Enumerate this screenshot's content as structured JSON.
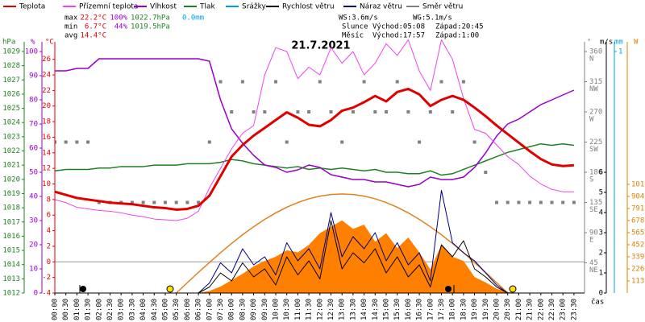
{
  "chart_data": {
    "type": "line",
    "title": "21.7.2021",
    "x_label": "čas",
    "categories": [
      "00:00",
      "00:30",
      "01:00",
      "01:30",
      "02:00",
      "02:30",
      "03:00",
      "03:30",
      "04:00",
      "04:30",
      "05:00",
      "05:30",
      "06:00",
      "06:30",
      "07:00",
      "07:30",
      "08:00",
      "08:30",
      "09:00",
      "09:30",
      "10:00",
      "10:30",
      "11:00",
      "11:30",
      "12:00",
      "12:30",
      "13:00",
      "13:30",
      "14:00",
      "14:30",
      "15:00",
      "15:30",
      "16:00",
      "16:30",
      "17:00",
      "17:30",
      "18:00",
      "18:30",
      "19:00",
      "19:30",
      "20:00",
      "20:30",
      "21:00",
      "21:30",
      "22:00",
      "22:30",
      "23:00",
      "23:30"
    ],
    "axes": {
      "hPa": {
        "label": "hPa",
        "color": "#208020",
        "ylim": [
          1012,
          1029
        ],
        "yticks": [
          1012,
          1013,
          1014,
          1015,
          1016,
          1017,
          1018,
          1019,
          1020,
          1021,
          1022,
          1023,
          1024,
          1025,
          1026,
          1027,
          1028,
          1029
        ]
      },
      "pct": {
        "label": "%",
        "color": "#9900cc",
        "ylim": [
          0,
          100
        ],
        "yticks": [
          0,
          10,
          20,
          30,
          40,
          50,
          60,
          70,
          80,
          90,
          100
        ]
      },
      "degC": {
        "label": "°C",
        "color": "#e00000",
        "ylim": [
          -4,
          27
        ],
        "yticks": [
          -4,
          -2,
          0,
          2,
          4,
          6,
          8,
          10,
          12,
          14,
          16,
          18,
          20,
          22,
          24,
          26
        ],
        "zero_line": true
      },
      "dir": {
        "label": "°",
        "color": "#808080",
        "ylim": [
          0,
          360
        ],
        "yticks": [
          45,
          90,
          135,
          180,
          225,
          270,
          315,
          360
        ],
        "compass": [
          "NE",
          "E",
          "SE",
          "S",
          "SW",
          "W",
          "NW",
          "N"
        ]
      },
      "ms": {
        "label": "m/s",
        "color": "#000000",
        "ylim": [
          0,
          12
        ],
        "yticks": [
          0,
          1,
          2,
          3,
          4,
          5,
          6
        ]
      },
      "mm": {
        "label": "mm",
        "color": "#00a0e0",
        "ylim": [
          0,
          1
        ],
        "yticks": [
          1
        ]
      },
      "W": {
        "label": "W",
        "color": "#e08000",
        "ylim": [
          0,
          2260
        ],
        "yticks": [
          113,
          226,
          339,
          452,
          565,
          678,
          791,
          904,
          1017
        ]
      }
    },
    "series": [
      {
        "name": "Teplota",
        "color": "#e00000",
        "axis": "degC",
        "width": 3,
        "values": [
          9.0,
          8.6,
          8.2,
          8.0,
          7.8,
          7.6,
          7.5,
          7.4,
          7.2,
          7.0,
          6.9,
          6.7,
          6.8,
          7.2,
          8.5,
          11.0,
          13.5,
          15.0,
          16.2,
          17.2,
          18.2,
          19.2,
          18.5,
          17.6,
          17.4,
          18.2,
          19.4,
          19.8,
          20.5,
          21.3,
          20.6,
          21.8,
          22.2,
          21.5,
          20.0,
          20.8,
          21.3,
          20.8,
          19.8,
          18.7,
          17.5,
          16.4,
          15.3,
          14.2,
          13.2,
          12.5,
          12.3,
          12.4
        ]
      },
      {
        "name": "Přízemní teplota",
        "color": "#ee44ee",
        "axis": "degC",
        "width": 1,
        "values": [
          8.0,
          7.6,
          7.0,
          6.8,
          6.6,
          6.5,
          6.3,
          6.0,
          5.8,
          5.5,
          5.4,
          5.3,
          5.6,
          6.5,
          9.5,
          12.0,
          14.5,
          16.5,
          17.5,
          24.0,
          27.5,
          27.0,
          23.5,
          25.0,
          24.0,
          27.5,
          25.5,
          27.0,
          24.0,
          25.5,
          28.0,
          26.5,
          28.5,
          24.5,
          22.0,
          28.5,
          26.0,
          21.0,
          17.0,
          16.5,
          15.0,
          13.5,
          12.5,
          11.0,
          10.0,
          9.3,
          9.0,
          9.0
        ]
      },
      {
        "name": "Vlhkost",
        "color": "#9900cc",
        "axis": "pct",
        "width": 1.5,
        "values": [
          92,
          92,
          93,
          93,
          97,
          97,
          97,
          97,
          97,
          97,
          97,
          97,
          97,
          97,
          96,
          80,
          68,
          62,
          57,
          53,
          52,
          50,
          51,
          53,
          52,
          49,
          48,
          47,
          47,
          46,
          46,
          45,
          44,
          45,
          48,
          47,
          47,
          48,
          52,
          58,
          65,
          70,
          72,
          75,
          78,
          80,
          82,
          84
        ]
      },
      {
        "name": "Tlak",
        "color": "#208020",
        "axis": "hPa",
        "width": 1.5,
        "values": [
          1020.6,
          1020.7,
          1020.7,
          1020.7,
          1020.8,
          1020.8,
          1020.9,
          1020.9,
          1020.9,
          1021.0,
          1021.0,
          1021.0,
          1021.1,
          1021.1,
          1021.1,
          1021.2,
          1021.4,
          1021.3,
          1021.1,
          1021.0,
          1020.9,
          1020.8,
          1020.9,
          1020.7,
          1020.8,
          1020.7,
          1020.8,
          1020.7,
          1020.6,
          1020.7,
          1020.5,
          1020.5,
          1020.4,
          1020.4,
          1020.6,
          1020.3,
          1020.4,
          1020.7,
          1021.0,
          1021.3,
          1021.6,
          1021.9,
          1022.1,
          1022.3,
          1022.5,
          1022.4,
          1022.5,
          1022.4
        ]
      },
      {
        "name": "Srážky",
        "color": "#00a0e0",
        "axis": "mm",
        "width": 1,
        "values": [
          0,
          0,
          0,
          0,
          0,
          0,
          0,
          0,
          0,
          0,
          0,
          0,
          0,
          0,
          0,
          0,
          0,
          0,
          0,
          0,
          0,
          0,
          0,
          0,
          0,
          0,
          0,
          0,
          0,
          0,
          0,
          0,
          0,
          0,
          0,
          0,
          0,
          0,
          0,
          0,
          0,
          0,
          0,
          0,
          0,
          0,
          0,
          0
        ]
      },
      {
        "name": "Rychlost větru",
        "color": "#000000",
        "axis": "ms",
        "width": 1,
        "values": [
          0,
          0,
          0,
          0,
          0,
          0,
          0,
          0,
          0,
          0,
          0,
          0,
          0,
          0,
          0.3,
          1.0,
          0.6,
          1.5,
          0.8,
          1.2,
          0.4,
          1.8,
          0.9,
          1.6,
          0.7,
          3.6,
          1.2,
          2.0,
          1.5,
          2.2,
          1.0,
          1.8,
          0.8,
          1.4,
          0.3,
          2.4,
          1.8,
          2.6,
          1.2,
          0.8,
          0.3,
          0,
          0,
          0,
          0,
          0,
          0,
          0
        ]
      },
      {
        "name": "Náraz větru",
        "color": "#000080",
        "axis": "ms",
        "width": 1,
        "values": [
          0,
          0,
          0,
          0,
          0,
          0,
          0,
          0,
          0,
          0,
          0,
          0,
          0,
          0,
          0.5,
          1.5,
          1.0,
          2.2,
          1.4,
          1.8,
          0.9,
          2.5,
          1.6,
          2.2,
          1.2,
          4.0,
          1.8,
          2.8,
          2.2,
          3.0,
          1.6,
          2.5,
          1.4,
          2.0,
          0.6,
          5.1,
          2.5,
          2.0,
          1.6,
          1.0,
          0.4,
          0,
          0,
          0,
          0,
          0,
          0,
          0
        ]
      },
      {
        "name": "Směr větru",
        "color": "#808080",
        "axis": "dir",
        "points": true,
        "values": [
          225,
          225,
          225,
          225,
          135,
          135,
          135,
          135,
          135,
          135,
          135,
          135,
          135,
          135,
          225,
          315,
          270,
          315,
          270,
          270,
          315,
          225,
          270,
          270,
          315,
          270,
          225,
          270,
          315,
          270,
          270,
          315,
          270,
          225,
          270,
          315,
          270,
          315,
          225,
          180,
          135,
          135,
          135,
          135,
          135,
          135,
          135,
          135
        ]
      }
    ],
    "radiation": {
      "axis": "W",
      "color": "#ff8000",
      "line_color": "#e08020",
      "values": [
        0,
        0,
        0,
        0,
        0,
        0,
        0,
        0,
        0,
        0,
        0,
        0,
        0,
        0,
        20,
        60,
        120,
        180,
        250,
        300,
        340,
        400,
        380,
        450,
        560,
        620,
        680,
        600,
        640,
        480,
        560,
        420,
        520,
        380,
        220,
        450,
        340,
        300,
        150,
        100,
        40,
        10,
        0,
        0,
        0,
        0,
        0,
        0
      ],
      "clear_sky": [
        null,
        null,
        null,
        null,
        null,
        null,
        null,
        null,
        null,
        null,
        null,
        0,
        97,
        193,
        286,
        377,
        464,
        545,
        620,
        689,
        750,
        803,
        847,
        882,
        907,
        922,
        927,
        922,
        907,
        882,
        847,
        803,
        750,
        689,
        620,
        545,
        464,
        377,
        286,
        193,
        97,
        0,
        null,
        null,
        null,
        null,
        null,
        null
      ]
    },
    "stats": [
      {
        "label": "max",
        "temperature": "22.2°C",
        "humidity": "100%",
        "pressure": "1022.7hPa",
        "rain": "0.0mm"
      },
      {
        "label": "min",
        "temperature": "6.7°C",
        "humidity": "44%",
        "pressure": "1019.5hPa"
      },
      {
        "label": "avg",
        "temperature": "14.4°C"
      }
    ],
    "info": {
      "ws": "WS:3.6m/s",
      "wg": "WG:5.1m/s",
      "sun": {
        "label": "Slunce",
        "rise": "Východ:05:08",
        "set": "Západ:20:45"
      },
      "moon": {
        "label": "Měsíc",
        "rise": "Východ:17:57",
        "set": "Západ:1:00"
      }
    }
  }
}
